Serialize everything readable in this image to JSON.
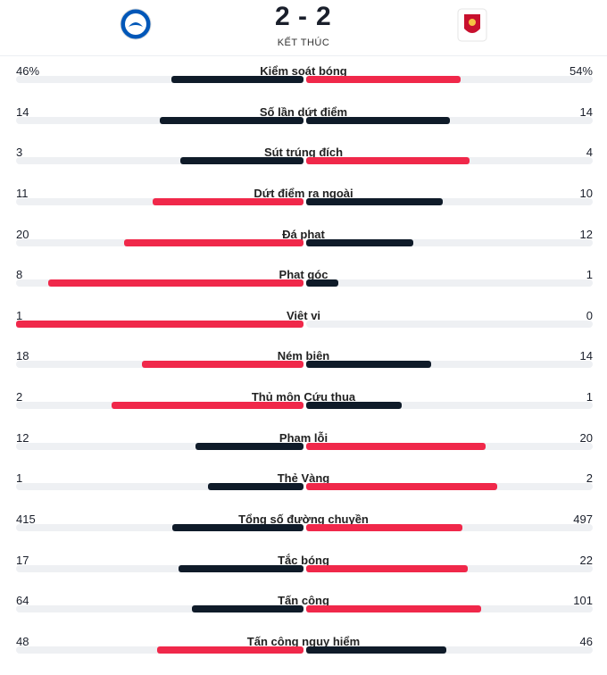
{
  "header": {
    "home_score": "2",
    "separator": "-",
    "away_score": "2",
    "status": "KẾT THÚC"
  },
  "stats": [
    {
      "label": "Kiểm soát bóng",
      "home": 46,
      "away": 54,
      "home_label": "46%",
      "away_label": "54%"
    },
    {
      "label": "Số lần dứt điểm",
      "home": 14,
      "away": 14
    },
    {
      "label": "Sút trúng đích",
      "home": 3,
      "away": 4
    },
    {
      "label": "Dứt điểm ra ngoài",
      "home": 11,
      "away": 10
    },
    {
      "label": "Đá phạt",
      "home": 20,
      "away": 12
    },
    {
      "label": "Phạt góc",
      "home": 8,
      "away": 1
    },
    {
      "label": "Việt vị",
      "home": 1,
      "away": 0
    },
    {
      "label": "Ném biên",
      "home": 18,
      "away": 14
    },
    {
      "label": "Thủ môn Cứu thua",
      "home": 2,
      "away": 1
    },
    {
      "label": "Phạm lỗi",
      "home": 12,
      "away": 20
    },
    {
      "label": "Thẻ Vàng",
      "home": 1,
      "away": 2
    },
    {
      "label": "Tổng số đường chuyền",
      "home": 415,
      "away": 497
    },
    {
      "label": "Tắc bóng",
      "home": 17,
      "away": 22
    },
    {
      "label": "Tấn công",
      "home": 64,
      "away": 101
    },
    {
      "label": "Tấn công nguy hiểm",
      "home": 48,
      "away": 46
    }
  ]
}
